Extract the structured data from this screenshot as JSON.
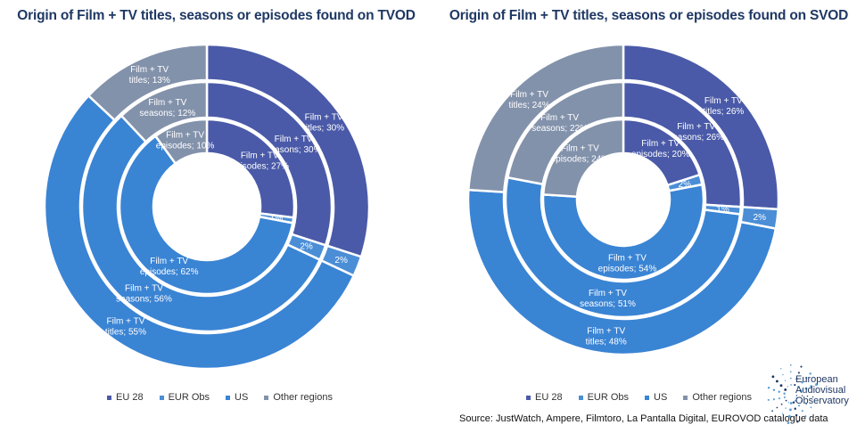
{
  "colors": {
    "EU 28": "#4a5aa8",
    "EUR Obs": "#4b8ed6",
    "US": "#3a84d4",
    "Other regions": "#8392ab"
  },
  "legend": [
    "EU 28",
    "EUR Obs",
    "US",
    "Other regions"
  ],
  "source": "Source: JustWatch, Ampere, Filmtoro, La Pantalla Digital, EUROVOD catalogue data",
  "logo_text": [
    "European",
    "Audiovisual",
    "Observatory"
  ],
  "chart_data": [
    {
      "type": "pie",
      "title": "Origin of Film + TV titles, seasons or episodes found on TVOD",
      "categories": [
        "EU 28",
        "EUR Obs",
        "US",
        "Other regions"
      ],
      "series": [
        {
          "name": "Film + TV titles",
          "values": [
            30,
            2,
            55,
            13
          ],
          "labels": [
            "Film + TV titles; 30%",
            "2%",
            "Film + TV titles; 55%",
            "Film + TV titles; 13%"
          ]
        },
        {
          "name": "Film + TV seasons",
          "values": [
            30,
            2,
            56,
            12
          ],
          "labels": [
            "Film + TV seasons; 30%",
            "2%",
            "Film + TV seasons; 56%",
            "Film + TV seasons; 12%"
          ]
        },
        {
          "name": "Film + TV episodes",
          "values": [
            27,
            1,
            62,
            10
          ],
          "labels": [
            "Film + TV episodes; 27%",
            "1%",
            "Film + TV episodes; 62%",
            "Film + TV episodes; 10%"
          ]
        }
      ]
    },
    {
      "type": "pie",
      "title": "Origin of Film + TV titles, seasons or episodes found on SVOD",
      "categories": [
        "EU 28",
        "EUR Obs",
        "US",
        "Other regions"
      ],
      "series": [
        {
          "name": "Film + TV titles",
          "values": [
            26,
            2,
            48,
            24
          ],
          "labels": [
            "Film + TV titles; 26%",
            "2%",
            "Film + TV titles; 48%",
            "Film + TV titles; 24%"
          ]
        },
        {
          "name": "Film + TV seasons",
          "values": [
            26,
            1,
            51,
            22
          ],
          "labels": [
            "Film + TV seasons; 26%",
            "1%",
            "Film + TV seasons; 51%",
            "Film + TV seasons; 22%"
          ]
        },
        {
          "name": "Film + TV episodes",
          "values": [
            20,
            2,
            54,
            24
          ],
          "labels": [
            "Film + TV episodes; 20%",
            "2%",
            "Film + TV episodes; 54%",
            "Film + TV episodes; 24%"
          ]
        }
      ]
    }
  ]
}
